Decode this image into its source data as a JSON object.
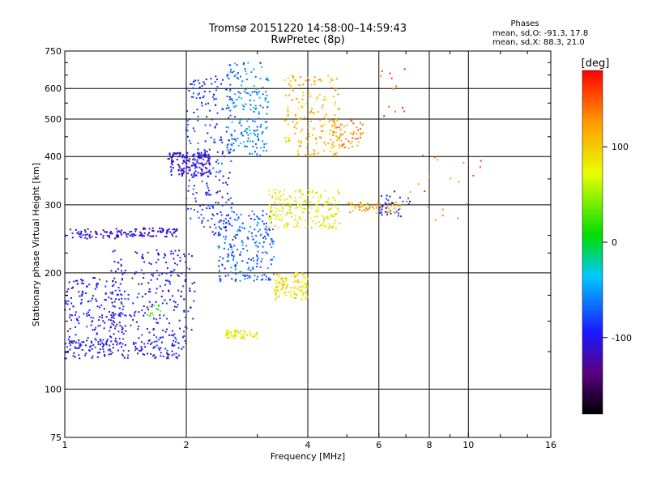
{
  "chart_data": {
    "type": "scatter",
    "title": "Tromsø 20151220 14:58:00–14:59:43",
    "subtitle": "RwPretec (8p)",
    "xlabel": "Frequency [MHz]",
    "ylabel": "Stationary phase Virtual Height [km]",
    "x_scale": "log",
    "y_scale": "log",
    "xlim": [
      1,
      16
    ],
    "ylim": [
      75,
      750
    ],
    "x_ticks": [
      1,
      2,
      4,
      6,
      8,
      10,
      16
    ],
    "x_tick_labels": [
      "1",
      "2",
      "4",
      "6",
      "8",
      "10",
      "16"
    ],
    "y_ticks": [
      75,
      100,
      200,
      300,
      400,
      500,
      600,
      750
    ],
    "y_tick_labels": [
      "75",
      "100",
      "200",
      "300",
      "400",
      "500",
      "600",
      "750"
    ],
    "grid": true,
    "legend_text": {
      "heading": "Phases",
      "line1": "mean, sd,O: -91.3, 17.8",
      "line2": "mean, sd,X:  88.3, 21.0"
    },
    "colorbar": {
      "label": "[deg]",
      "range": [
        -180,
        180
      ],
      "ticks": [
        100,
        0,
        -100
      ],
      "tick_labels": [
        "100",
        "0",
        "-100"
      ]
    },
    "clusters": [
      {
        "f_range": [
          1.0,
          1.45
        ],
        "h_range": [
          245,
          260
        ],
        "phase": -110,
        "count": 70,
        "note": "blue trace near 250 km"
      },
      {
        "f_range": [
          1.45,
          1.9
        ],
        "h_range": [
          248,
          262
        ],
        "phase": -110,
        "count": 70
      },
      {
        "f_range": [
          1.0,
          2.0
        ],
        "h_range": [
          120,
          135
        ],
        "phase": -100,
        "count": 160,
        "note": "lower blue trace near 125 km"
      },
      {
        "f_range": [
          1.0,
          1.4
        ],
        "h_range": [
          130,
          195
        ],
        "phase": -100,
        "count": 180
      },
      {
        "f_range": [
          1.3,
          2.1
        ],
        "h_range": [
          135,
          230
        ],
        "phase": -100,
        "count": 230
      },
      {
        "f_range": [
          1.6,
          1.75
        ],
        "h_range": [
          155,
          165
        ],
        "phase": 30,
        "count": 12
      },
      {
        "f_range": [
          1.8,
          2.3
        ],
        "h_range": [
          355,
          410
        ],
        "phase": -110,
        "count": 150,
        "note": "dense blue cluster near 380 km"
      },
      {
        "f_range": [
          2.0,
          2.6
        ],
        "h_range": [
          250,
          650
        ],
        "phase": -90,
        "count": 230
      },
      {
        "f_range": [
          2.5,
          3.2
        ],
        "h_range": [
          400,
          700
        ],
        "phase": -60,
        "count": 190
      },
      {
        "f_range": [
          2.4,
          3.3
        ],
        "h_range": [
          190,
          290
        ],
        "phase": -70,
        "count": 220
      },
      {
        "f_range": [
          3.2,
          4.8
        ],
        "h_range": [
          260,
          330
        ],
        "phase": 80,
        "count": 200,
        "note": "yellow-orange trace near 300 km"
      },
      {
        "f_range": [
          3.3,
          4.0
        ],
        "h_range": [
          170,
          200
        ],
        "phase": 90,
        "count": 110
      },
      {
        "f_range": [
          2.5,
          3.0
        ],
        "h_range": [
          135,
          142
        ],
        "phase": 80,
        "count": 55
      },
      {
        "f_range": [
          3.5,
          4.8
        ],
        "h_range": [
          400,
          650
        ],
        "phase": 110,
        "count": 170
      },
      {
        "f_range": [
          4.5,
          5.5
        ],
        "h_range": [
          420,
          500
        ],
        "phase": 130,
        "count": 60
      },
      {
        "f_range": [
          5.0,
          6.8
        ],
        "h_range": [
          285,
          305
        ],
        "phase": 120,
        "count": 60
      },
      {
        "f_range": [
          6.0,
          7.2
        ],
        "h_range": [
          280,
          330
        ],
        "phase": -90,
        "count": 35
      },
      {
        "f_range": [
          7.0,
          11.0
        ],
        "h_range": [
          270,
          420
        ],
        "phase": 140,
        "count": 20
      },
      {
        "f_range": [
          6.0,
          7.0
        ],
        "h_range": [
          500,
          680
        ],
        "phase": 150,
        "count": 12
      }
    ]
  }
}
